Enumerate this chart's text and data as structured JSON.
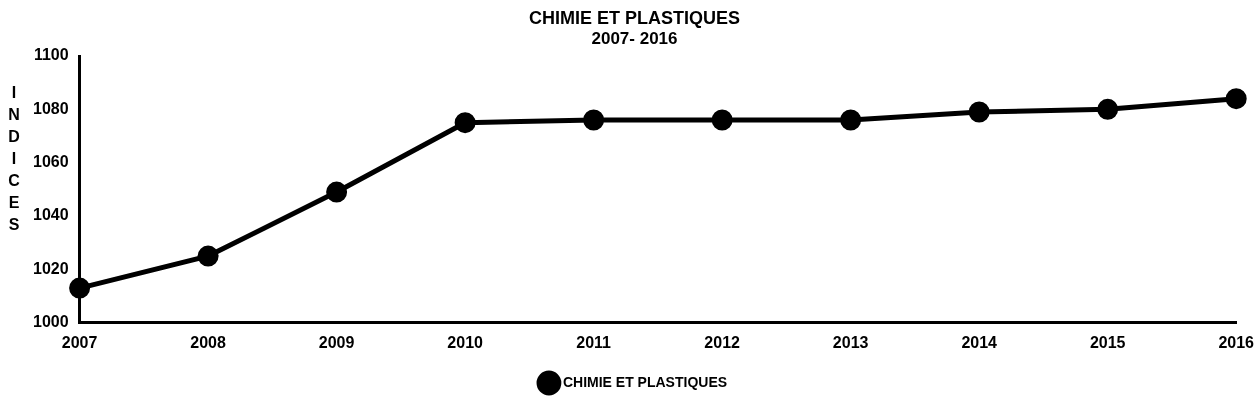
{
  "chart_data": {
    "type": "line",
    "title": "CHIMIE ET PLASTIQUES",
    "subtitle": "2007- 2016",
    "ylabel": "INDICES",
    "categories": [
      "2007",
      "2008",
      "2009",
      "2010",
      "2011",
      "2012",
      "2013",
      "2014",
      "2015",
      "2016"
    ],
    "series": [
      {
        "name": "CHIMIE ET PLASTIQUES",
        "color": "#000000",
        "values": [
          1013,
          1025,
          1049,
          1075,
          1076,
          1076,
          1076,
          1079,
          1080,
          1084
        ]
      }
    ],
    "ylim": [
      1000,
      1100
    ],
    "yticks": [
      1000,
      1020,
      1040,
      1060,
      1080,
      1100
    ],
    "grid": false,
    "legend": "bottom",
    "marker": "circle",
    "line_style": "solid"
  }
}
